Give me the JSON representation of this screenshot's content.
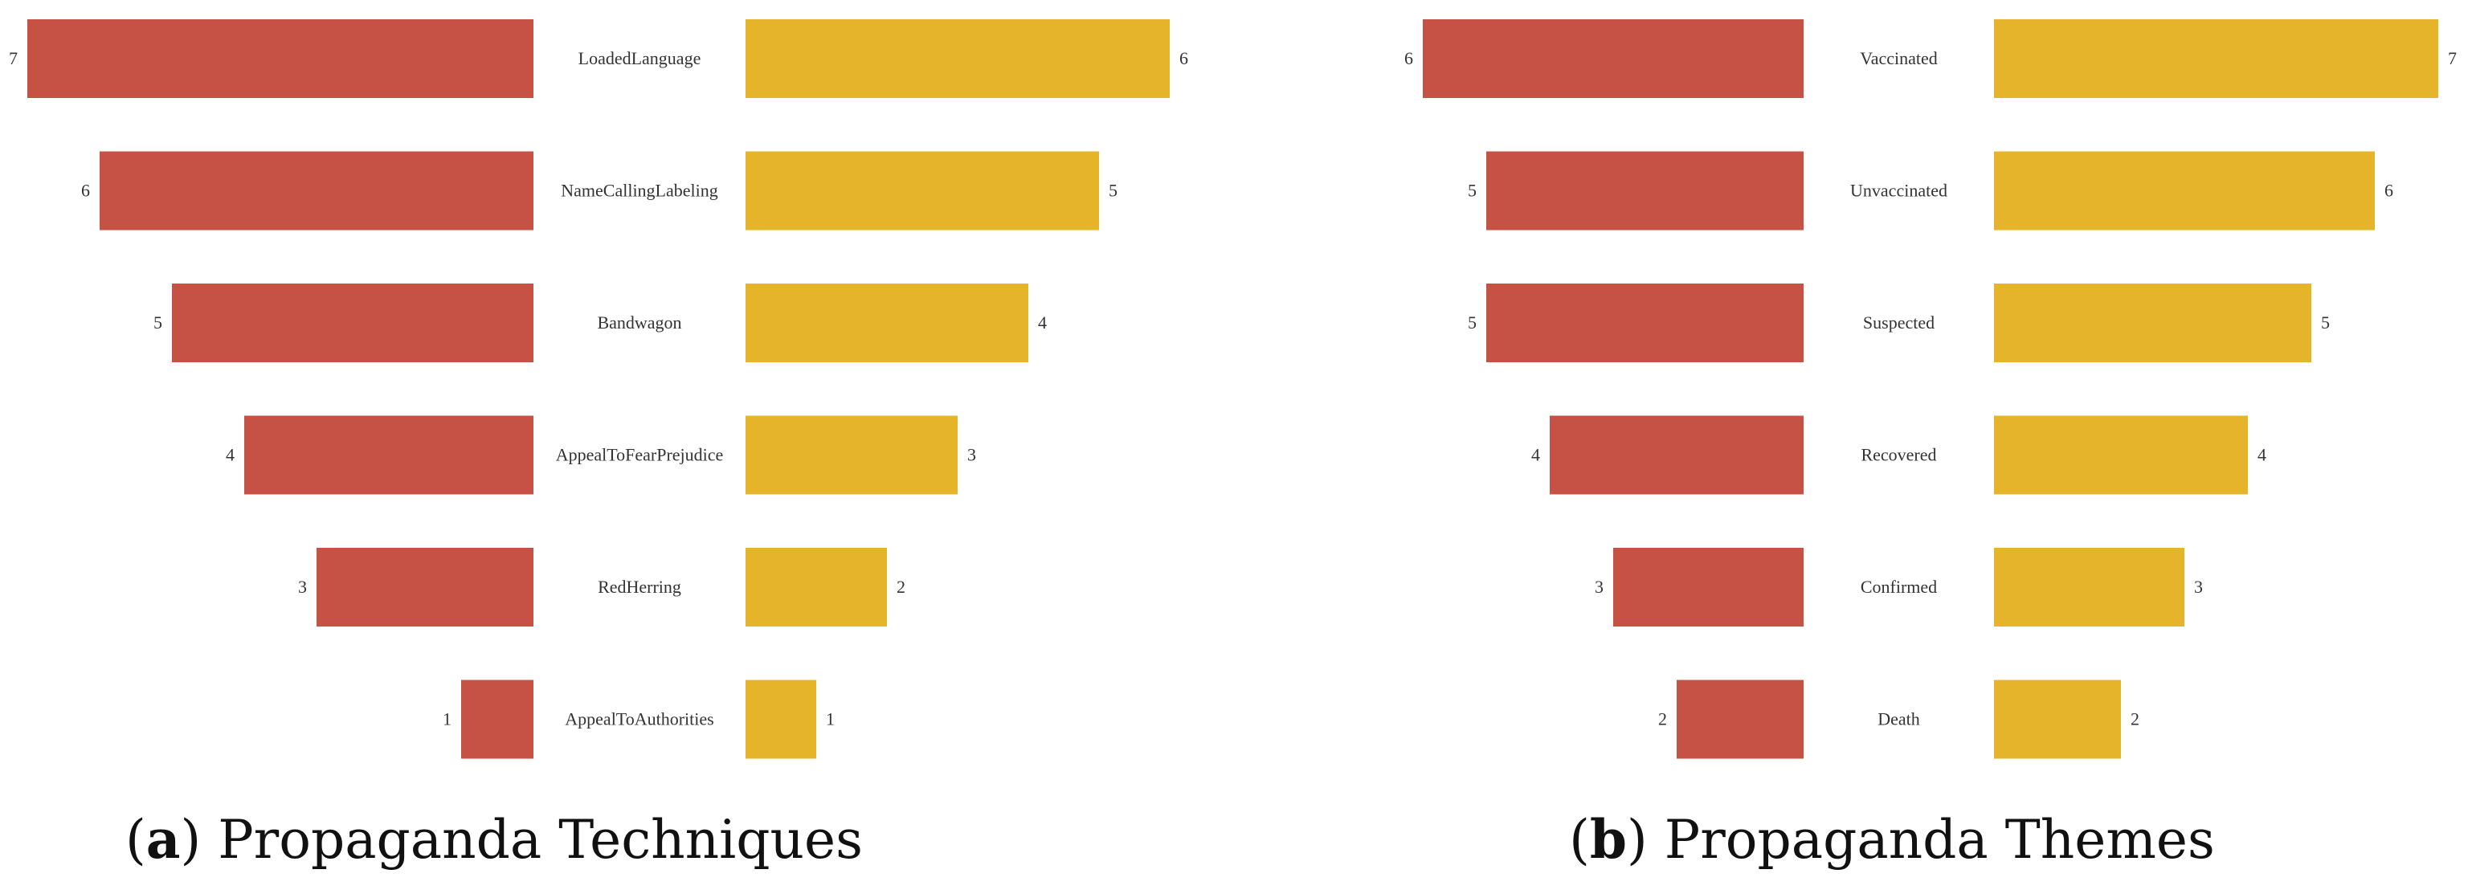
{
  "chart_data": [
    {
      "type": "bar",
      "orientation": "horizontal-diverging",
      "caption_letter": "a",
      "caption_text": "Propaganda Techniques",
      "categories": [
        "LoadedLanguage",
        "NameCallingLabeling",
        "Bandwagon",
        "AppealToFearPrejudice",
        "RedHerring",
        "AppealToAuthorities"
      ],
      "series": [
        {
          "values": [
            7,
            6,
            5,
            4,
            3,
            1
          ],
          "side": "left",
          "color": "#c65145"
        },
        {
          "values": [
            6,
            5,
            4,
            3,
            2,
            1
          ],
          "side": "right",
          "color": "#e5b42a"
        }
      ],
      "xlim": [
        0,
        7
      ]
    },
    {
      "type": "bar",
      "orientation": "horizontal-diverging",
      "caption_letter": "b",
      "caption_text": "Propaganda Themes",
      "categories": [
        "Vaccinated",
        "Unvaccinated",
        "Suspected",
        "Recovered",
        "Confirmed",
        "Death"
      ],
      "series": [
        {
          "values": [
            6,
            5,
            5,
            4,
            3,
            2
          ],
          "side": "left",
          "color": "#c65145"
        },
        {
          "values": [
            7,
            6,
            5,
            4,
            3,
            2
          ],
          "side": "right",
          "color": "#e5b42a"
        }
      ],
      "xlim": [
        0,
        7
      ]
    }
  ]
}
